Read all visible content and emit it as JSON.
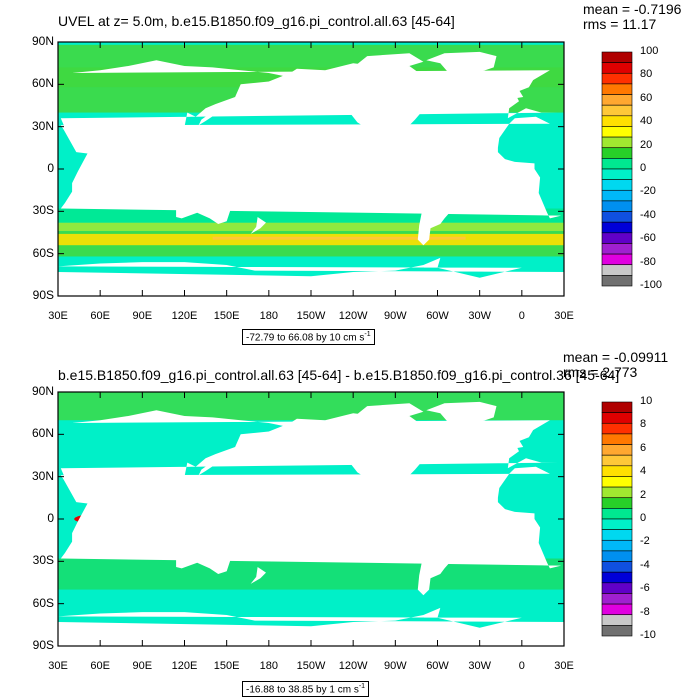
{
  "panels": [
    {
      "title": "UVEL at z=   5.0m, b.e15.B1850.f09_g16.pi_control.all.63 [45-64]",
      "mean_text": "mean = -0.7196",
      "rms_text": "rms = 11.17",
      "range_text": "-72.79 to 66.08 by 10 cm s",
      "range_exp": "-1"
    },
    {
      "title": "b.e15.B1850.f09_g16.pi_control.all.63 [45-64] - b.e15.B1850.f09_g16.pi_control.36 [45-64]",
      "mean_text": "mean = -0.09911",
      "rms_text": "rms = 2.773",
      "range_text": "-16.88 to 38.85 by 1 cm s",
      "range_exp": "-1"
    }
  ],
  "chart_data": [
    {
      "type": "heatmap",
      "title": "UVEL at z=   5.0m, b.e15.B1850.f09_g16.pi_control.all.63 [45-64]",
      "lat_ticks": [
        "90N",
        "60N",
        "30N",
        "0",
        "30S",
        "60S",
        "90S"
      ],
      "lon_ticks": [
        "30E",
        "60E",
        "90E",
        "120E",
        "150E",
        "180",
        "150W",
        "120W",
        "90W",
        "60W",
        "30W",
        "0",
        "30E"
      ],
      "colorbar_labels": [
        "100",
        "80",
        "60",
        "40",
        "20",
        "0",
        "-20",
        "-40",
        "-60",
        "-80",
        "-100"
      ],
      "colorbar_colors": [
        "#b00000",
        "#e00000",
        "#ff3000",
        "#ff7800",
        "#ffa830",
        "#ffc838",
        "#ffe000",
        "#ffff00",
        "#a0e830",
        "#28d028",
        "#00e890",
        "#00f0c8",
        "#00d8f0",
        "#00b8f8",
        "#0090f0",
        "#1050e0",
        "#0000d8",
        "#6000c8",
        "#a020d0",
        "#e000e0",
        "#c8c8c8",
        "#707070"
      ],
      "xlim": [
        30,
        390
      ],
      "ylim": [
        -90,
        90
      ],
      "stats": {
        "mean": -0.7196,
        "rms": 11.17
      },
      "contour_min": -72.79,
      "contour_max": 66.08,
      "contour_interval": 10
    },
    {
      "type": "heatmap",
      "title": "b.e15.B1850.f09_g16.pi_control.all.63 [45-64] - b.e15.B1850.f09_g16.pi_control.36 [45-64]",
      "lat_ticks": [
        "90N",
        "60N",
        "30N",
        "0",
        "30S",
        "60S",
        "90S"
      ],
      "lon_ticks": [
        "30E",
        "60E",
        "90E",
        "120E",
        "150E",
        "180",
        "150W",
        "120W",
        "90W",
        "60W",
        "30W",
        "0",
        "30E"
      ],
      "colorbar_labels": [
        "10",
        "8",
        "6",
        "4",
        "2",
        "0",
        "-2",
        "-4",
        "-6",
        "-8",
        "-10"
      ],
      "colorbar_colors": [
        "#b00000",
        "#e00000",
        "#ff3000",
        "#ff7800",
        "#ffa830",
        "#ffc838",
        "#ffe000",
        "#ffff00",
        "#a0e830",
        "#28d028",
        "#00e890",
        "#00f0c8",
        "#00d8f0",
        "#00b8f8",
        "#0090f0",
        "#1050e0",
        "#0000d8",
        "#6000c8",
        "#a020d0",
        "#e000e0",
        "#c8c8c8",
        "#707070"
      ],
      "xlim": [
        30,
        390
      ],
      "ylim": [
        -90,
        90
      ],
      "stats": {
        "mean": -0.09911,
        "rms": 2.773
      },
      "contour_min": -16.88,
      "contour_max": 38.85,
      "contour_interval": 1
    }
  ]
}
